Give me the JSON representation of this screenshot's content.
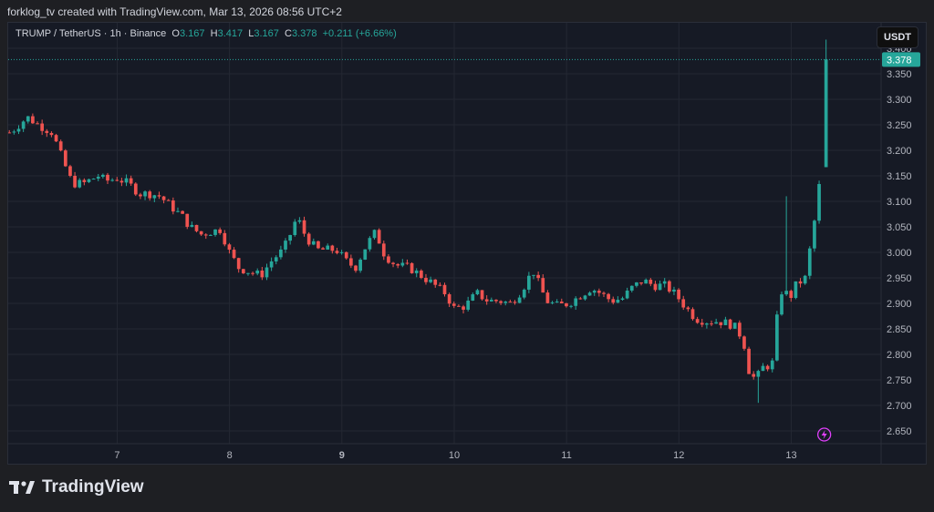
{
  "header": {
    "attribution": "forklog_tv created with TradingView.com, Mar 13, 2026 08:56 UTC+2"
  },
  "legend": {
    "symbol": "TRUMP / TetherUS · 1h · Binance",
    "o_label": "O",
    "o_value": "3.167",
    "h_label": "H",
    "h_value": "3.417",
    "l_label": "L",
    "l_value": "3.167",
    "c_label": "C",
    "c_value": "3.378",
    "change": "+0.211 (+6.66%)"
  },
  "currency_button": "USDT",
  "brand": {
    "name": "TradingView"
  },
  "colors": {
    "up": "#26a69a",
    "down": "#ef5350",
    "grid": "#242833",
    "axis_text": "#b2b5be",
    "last_price_bg": "#26a69a"
  },
  "chart_data": {
    "type": "candlestick",
    "title": "TRUMP / TetherUS · 1h · Binance",
    "ylim": [
      2.625,
      3.45
    ],
    "y_ticks": [
      "3.400",
      "3.350",
      "3.300",
      "3.250",
      "3.200",
      "3.150",
      "3.100",
      "3.050",
      "3.000",
      "2.950",
      "2.900",
      "2.850",
      "2.800",
      "2.750",
      "2.700",
      "2.650"
    ],
    "x_ticks": [
      "7",
      "8",
      "9",
      "10",
      "11",
      "12",
      "13"
    ],
    "x_tick_days": [
      7,
      8,
      9,
      10,
      11,
      12,
      13
    ],
    "x_range_days": [
      6.03,
      13.8
    ],
    "last_price": "3.378",
    "grid": true,
    "path": [
      [
        6.05,
        3.235
      ],
      [
        6.2,
        3.265
      ],
      [
        6.3,
        3.25
      ],
      [
        6.42,
        3.235
      ],
      [
        6.5,
        3.19
      ],
      [
        6.6,
        3.135
      ],
      [
        6.7,
        3.135
      ],
      [
        6.83,
        3.15
      ],
      [
        6.9,
        3.14
      ],
      [
        7.0,
        3.145
      ],
      [
        7.1,
        3.135
      ],
      [
        7.2,
        3.115
      ],
      [
        7.3,
        3.115
      ],
      [
        7.38,
        3.11
      ],
      [
        7.48,
        3.09
      ],
      [
        7.58,
        3.07
      ],
      [
        7.65,
        3.05
      ],
      [
        7.75,
        3.035
      ],
      [
        7.82,
        3.04
      ],
      [
        7.92,
        3.045
      ],
      [
        8.0,
        3.0
      ],
      [
        8.08,
        2.97
      ],
      [
        8.2,
        2.96
      ],
      [
        8.28,
        2.955
      ],
      [
        8.38,
        2.985
      ],
      [
        8.48,
        3.005
      ],
      [
        8.55,
        3.04
      ],
      [
        8.6,
        3.07
      ],
      [
        8.68,
        3.03
      ],
      [
        8.78,
        3.005
      ],
      [
        8.88,
        3.005
      ],
      [
        8.95,
        3.005
      ],
      [
        9.05,
        2.98
      ],
      [
        9.12,
        2.97
      ],
      [
        9.22,
        3.015
      ],
      [
        9.3,
        3.04
      ],
      [
        9.38,
        2.995
      ],
      [
        9.48,
        2.975
      ],
      [
        9.6,
        2.97
      ],
      [
        9.7,
        2.955
      ],
      [
        9.8,
        2.94
      ],
      [
        9.92,
        2.92
      ],
      [
        10.0,
        2.89
      ],
      [
        10.1,
        2.895
      ],
      [
        10.2,
        2.92
      ],
      [
        10.3,
        2.905
      ],
      [
        10.4,
        2.905
      ],
      [
        10.5,
        2.9
      ],
      [
        10.6,
        2.925
      ],
      [
        10.7,
        2.965
      ],
      [
        10.82,
        2.905
      ],
      [
        10.92,
        2.895
      ],
      [
        11.02,
        2.9
      ],
      [
        11.12,
        2.915
      ],
      [
        11.22,
        2.93
      ],
      [
        11.3,
        2.92
      ],
      [
        11.4,
        2.905
      ],
      [
        11.5,
        2.91
      ],
      [
        11.58,
        2.93
      ],
      [
        11.68,
        2.945
      ],
      [
        11.78,
        2.935
      ],
      [
        11.88,
        2.935
      ],
      [
        11.98,
        2.915
      ],
      [
        12.05,
        2.895
      ],
      [
        12.15,
        2.87
      ],
      [
        12.25,
        2.865
      ],
      [
        12.35,
        2.865
      ],
      [
        12.45,
        2.86
      ],
      [
        12.52,
        2.85
      ],
      [
        12.58,
        2.82
      ],
      [
        12.62,
        2.77
      ],
      [
        12.68,
        2.75
      ],
      [
        12.75,
        2.775
      ],
      [
        12.83,
        2.78
      ],
      [
        12.9,
        2.925
      ],
      [
        13.0,
        2.915
      ],
      [
        13.05,
        2.94
      ],
      [
        13.12,
        2.945
      ],
      [
        13.2,
        3.05
      ],
      [
        13.27,
        3.165
      ],
      [
        13.31,
        3.378
      ]
    ]
  }
}
